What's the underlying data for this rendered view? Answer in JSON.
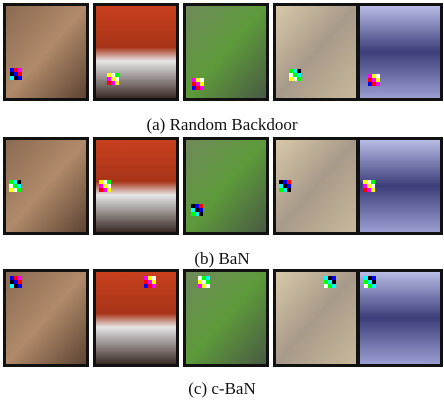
{
  "rows": [
    {
      "caption": "(a) Random Backdoor"
    },
    {
      "caption": "(b) BaN"
    },
    {
      "caption": "(c) c-BaN"
    }
  ]
}
